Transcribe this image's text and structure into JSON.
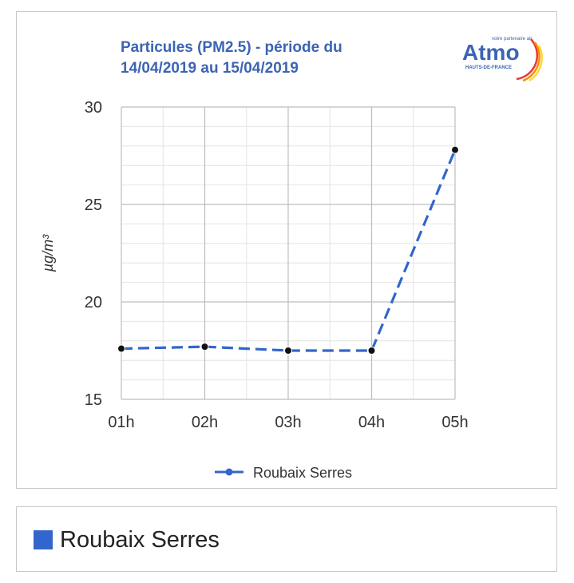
{
  "chart_data": {
    "type": "line",
    "title": "Particules (PM2.5) - période du 14/04/2019 au 15/04/2019",
    "title_lines": [
      "Particules (PM2.5) - période du",
      "14/04/2019 au 15/04/2019"
    ],
    "ylabel": "µg/m³",
    "xlabel": "",
    "categories": [
      "01h",
      "02h",
      "03h",
      "04h",
      "05h"
    ],
    "ylim": [
      15,
      30
    ],
    "yticks": [
      "15",
      "20",
      "25",
      "30"
    ],
    "grid": true,
    "series": [
      {
        "name": "Roubaix Serres",
        "values": [
          17.6,
          17.7,
          17.5,
          17.5,
          27.8
        ],
        "color": "#3366cc",
        "style": "dashed"
      }
    ],
    "legend_position": "bottom"
  },
  "logo": {
    "name": "Atmo",
    "tagline": "votre partenaire air",
    "region": "HAUTS-DE-FRANCE"
  },
  "external_legend": {
    "label": "Roubaix Serres",
    "color": "#3366cc"
  }
}
